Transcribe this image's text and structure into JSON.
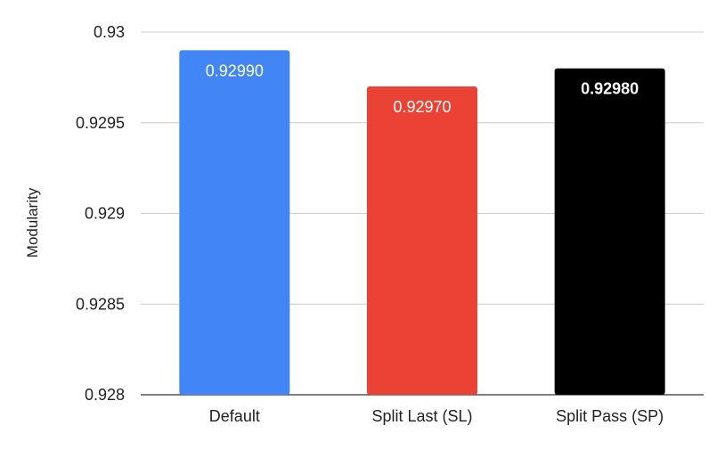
{
  "chart_data": {
    "type": "bar",
    "title": "",
    "xlabel": "",
    "ylabel": "Modularity",
    "categories": [
      "Default",
      "Split Last (SL)",
      "Split Pass (SP)"
    ],
    "values": [
      0.9299,
      0.9297,
      0.9298
    ],
    "value_labels": [
      "0.92990",
      "0.92970",
      "0.92980"
    ],
    "bar_colors": [
      "#4285f4",
      "#ea4335",
      "#000000"
    ],
    "bold_value_labels": [
      false,
      false,
      true
    ],
    "ylim": [
      0.928,
      0.93
    ],
    "yticks": [
      0.928,
      0.9285,
      0.929,
      0.9295,
      0.93
    ],
    "ytick_labels": [
      "0.928",
      "0.9285",
      "0.929",
      "0.9295",
      "0.93"
    ],
    "grid": true,
    "legend": "none"
  }
}
